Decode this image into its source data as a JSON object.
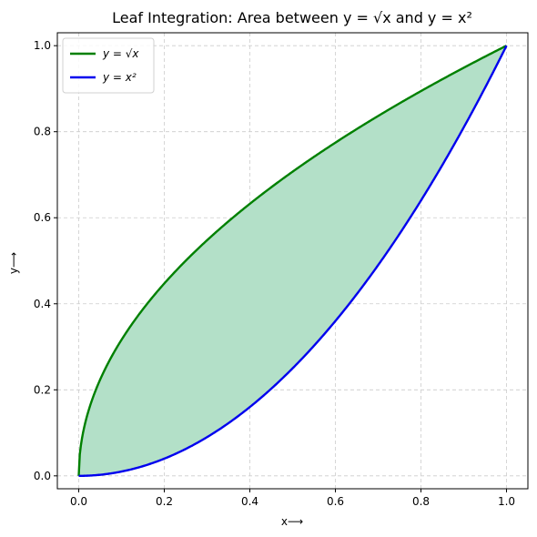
{
  "chart_data": {
    "type": "area",
    "title": "Leaf Integration: Area between y = √x and y = x²",
    "xlabel": "x⟶",
    "ylabel": "y⟶",
    "xlim": [
      -0.05,
      1.05
    ],
    "ylim": [
      -0.03,
      1.03
    ],
    "x_ticks": [
      0.0,
      0.2,
      0.4,
      0.6,
      0.8,
      1.0
    ],
    "y_ticks": [
      0.0,
      0.2,
      0.4,
      0.6,
      0.8,
      1.0
    ],
    "x_tick_labels": [
      "0.0",
      "0.2",
      "0.4",
      "0.6",
      "0.8",
      "1.0"
    ],
    "y_tick_labels": [
      "0.0",
      "0.2",
      "0.4",
      "0.6",
      "0.8",
      "1.0"
    ],
    "grid": true,
    "legend_position": "top-left",
    "fill_color": "#b3e0c8",
    "x": [
      0.0,
      0.05,
      0.1,
      0.15,
      0.2,
      0.25,
      0.3,
      0.35,
      0.4,
      0.45,
      0.5,
      0.55,
      0.6,
      0.65,
      0.7,
      0.75,
      0.8,
      0.85,
      0.9,
      0.95,
      1.0
    ],
    "series": [
      {
        "name": "y = √x",
        "color": "#008000",
        "values": [
          0.0,
          0.224,
          0.316,
          0.387,
          0.447,
          0.5,
          0.548,
          0.592,
          0.632,
          0.671,
          0.707,
          0.742,
          0.775,
          0.806,
          0.837,
          0.866,
          0.894,
          0.922,
          0.949,
          0.975,
          1.0
        ]
      },
      {
        "name": "y = x²",
        "color": "#0000ee",
        "values": [
          0.0,
          0.0025,
          0.01,
          0.0225,
          0.04,
          0.0625,
          0.09,
          0.1225,
          0.16,
          0.2025,
          0.25,
          0.3025,
          0.36,
          0.4225,
          0.49,
          0.5625,
          0.64,
          0.7225,
          0.81,
          0.9025,
          1.0
        ]
      }
    ]
  }
}
